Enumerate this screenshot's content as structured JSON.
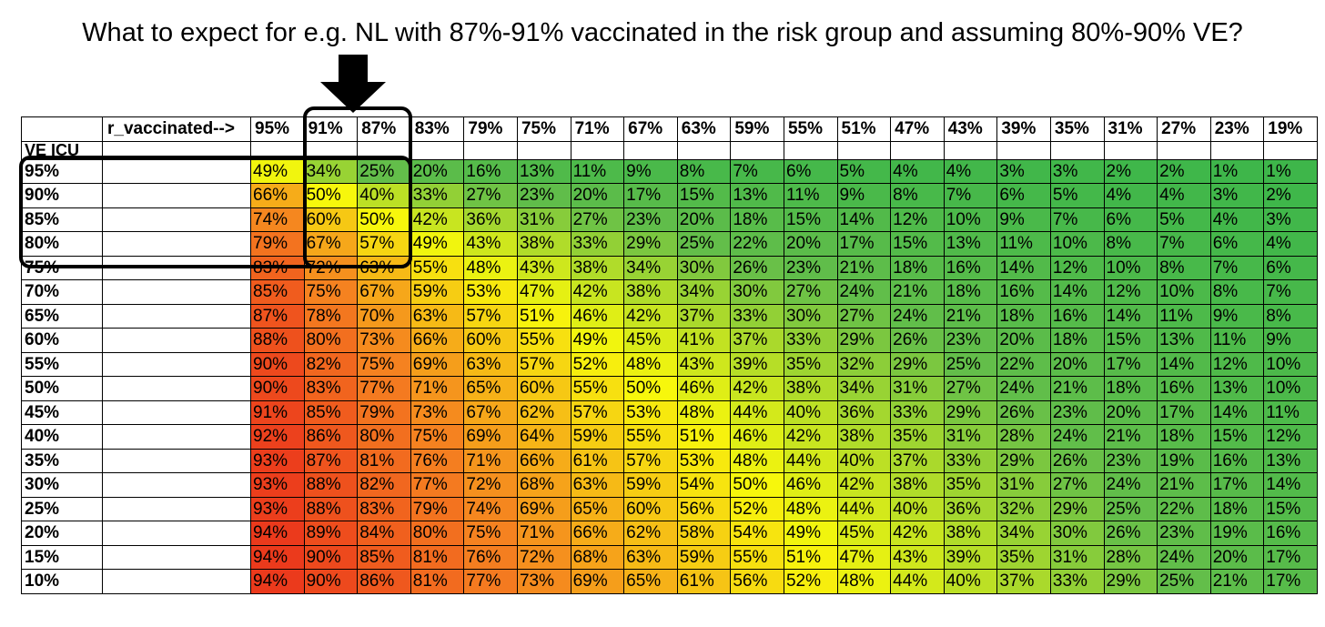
{
  "title": "What to expect for e.g. NL with 87%-91% vaccinated in the risk group and assuming 80%-90% VE?",
  "chart_data": {
    "type": "heatmap",
    "corner_label": "r_vaccinated-->",
    "row_axis_label": "VE ICU",
    "columns": [
      "95%",
      "91%",
      "87%",
      "83%",
      "79%",
      "75%",
      "71%",
      "67%",
      "63%",
      "59%",
      "55%",
      "51%",
      "47%",
      "43%",
      "39%",
      "35%",
      "31%",
      "27%",
      "23%",
      "19%"
    ],
    "rows": [
      "95%",
      "90%",
      "85%",
      "80%",
      "75%",
      "70%",
      "65%",
      "60%",
      "55%",
      "50%",
      "45%",
      "40%",
      "35%",
      "30%",
      "25%",
      "20%",
      "15%",
      "10%"
    ],
    "values": [
      [
        "49%",
        "34%",
        "25%",
        "20%",
        "16%",
        "13%",
        "11%",
        "9%",
        "8%",
        "7%",
        "6%",
        "5%",
        "4%",
        "4%",
        "3%",
        "3%",
        "2%",
        "2%",
        "1%",
        "1%"
      ],
      [
        "66%",
        "50%",
        "40%",
        "33%",
        "27%",
        "23%",
        "20%",
        "17%",
        "15%",
        "13%",
        "11%",
        "9%",
        "8%",
        "7%",
        "6%",
        "5%",
        "4%",
        "4%",
        "3%",
        "2%"
      ],
      [
        "74%",
        "60%",
        "50%",
        "42%",
        "36%",
        "31%",
        "27%",
        "23%",
        "20%",
        "18%",
        "15%",
        "14%",
        "12%",
        "10%",
        "9%",
        "7%",
        "6%",
        "5%",
        "4%",
        "3%"
      ],
      [
        "79%",
        "67%",
        "57%",
        "49%",
        "43%",
        "38%",
        "33%",
        "29%",
        "25%",
        "22%",
        "20%",
        "17%",
        "15%",
        "13%",
        "11%",
        "10%",
        "8%",
        "7%",
        "6%",
        "4%"
      ],
      [
        "83%",
        "72%",
        "63%",
        "55%",
        "48%",
        "43%",
        "38%",
        "34%",
        "30%",
        "26%",
        "23%",
        "21%",
        "18%",
        "16%",
        "14%",
        "12%",
        "10%",
        "8%",
        "7%",
        "6%"
      ],
      [
        "85%",
        "75%",
        "67%",
        "59%",
        "53%",
        "47%",
        "42%",
        "38%",
        "34%",
        "30%",
        "27%",
        "24%",
        "21%",
        "18%",
        "16%",
        "14%",
        "12%",
        "10%",
        "8%",
        "7%"
      ],
      [
        "87%",
        "78%",
        "70%",
        "63%",
        "57%",
        "51%",
        "46%",
        "42%",
        "37%",
        "33%",
        "30%",
        "27%",
        "24%",
        "21%",
        "18%",
        "16%",
        "14%",
        "11%",
        "9%",
        "8%"
      ],
      [
        "88%",
        "80%",
        "73%",
        "66%",
        "60%",
        "55%",
        "49%",
        "45%",
        "41%",
        "37%",
        "33%",
        "29%",
        "26%",
        "23%",
        "20%",
        "18%",
        "15%",
        "13%",
        "11%",
        "9%"
      ],
      [
        "90%",
        "82%",
        "75%",
        "69%",
        "63%",
        "57%",
        "52%",
        "48%",
        "43%",
        "39%",
        "35%",
        "32%",
        "29%",
        "25%",
        "22%",
        "20%",
        "17%",
        "14%",
        "12%",
        "10%"
      ],
      [
        "90%",
        "83%",
        "77%",
        "71%",
        "65%",
        "60%",
        "55%",
        "50%",
        "46%",
        "42%",
        "38%",
        "34%",
        "31%",
        "27%",
        "24%",
        "21%",
        "18%",
        "16%",
        "13%",
        "10%"
      ],
      [
        "91%",
        "85%",
        "79%",
        "73%",
        "67%",
        "62%",
        "57%",
        "53%",
        "48%",
        "44%",
        "40%",
        "36%",
        "33%",
        "29%",
        "26%",
        "23%",
        "20%",
        "17%",
        "14%",
        "11%"
      ],
      [
        "92%",
        "86%",
        "80%",
        "75%",
        "69%",
        "64%",
        "59%",
        "55%",
        "51%",
        "46%",
        "42%",
        "38%",
        "35%",
        "31%",
        "28%",
        "24%",
        "21%",
        "18%",
        "15%",
        "12%"
      ],
      [
        "93%",
        "87%",
        "81%",
        "76%",
        "71%",
        "66%",
        "61%",
        "57%",
        "53%",
        "48%",
        "44%",
        "40%",
        "37%",
        "33%",
        "29%",
        "26%",
        "23%",
        "19%",
        "16%",
        "13%"
      ],
      [
        "93%",
        "88%",
        "82%",
        "77%",
        "72%",
        "68%",
        "63%",
        "59%",
        "54%",
        "50%",
        "46%",
        "42%",
        "38%",
        "35%",
        "31%",
        "27%",
        "24%",
        "21%",
        "17%",
        "14%"
      ],
      [
        "93%",
        "88%",
        "83%",
        "79%",
        "74%",
        "69%",
        "65%",
        "60%",
        "56%",
        "52%",
        "48%",
        "44%",
        "40%",
        "36%",
        "32%",
        "29%",
        "25%",
        "22%",
        "18%",
        "15%"
      ],
      [
        "94%",
        "89%",
        "84%",
        "80%",
        "75%",
        "71%",
        "66%",
        "62%",
        "58%",
        "54%",
        "49%",
        "45%",
        "42%",
        "38%",
        "34%",
        "30%",
        "26%",
        "23%",
        "19%",
        "16%"
      ],
      [
        "94%",
        "90%",
        "85%",
        "81%",
        "76%",
        "72%",
        "68%",
        "63%",
        "59%",
        "55%",
        "51%",
        "47%",
        "43%",
        "39%",
        "35%",
        "31%",
        "28%",
        "24%",
        "20%",
        "17%"
      ],
      [
        "94%",
        "90%",
        "86%",
        "81%",
        "77%",
        "73%",
        "69%",
        "65%",
        "61%",
        "56%",
        "52%",
        "48%",
        "44%",
        "40%",
        "37%",
        "33%",
        "29%",
        "25%",
        "21%",
        "17%"
      ]
    ],
    "color_scale": [
      "#e8231b",
      "#f58220",
      "#f7f70c",
      "#63be4a",
      "#3cb64a"
    ],
    "highlights": {
      "columns": [
        "91%",
        "87%"
      ],
      "rows": [
        "95%",
        "90%",
        "85%",
        "80%"
      ],
      "arrow_target_columns": [
        "91%",
        "87%"
      ]
    }
  }
}
